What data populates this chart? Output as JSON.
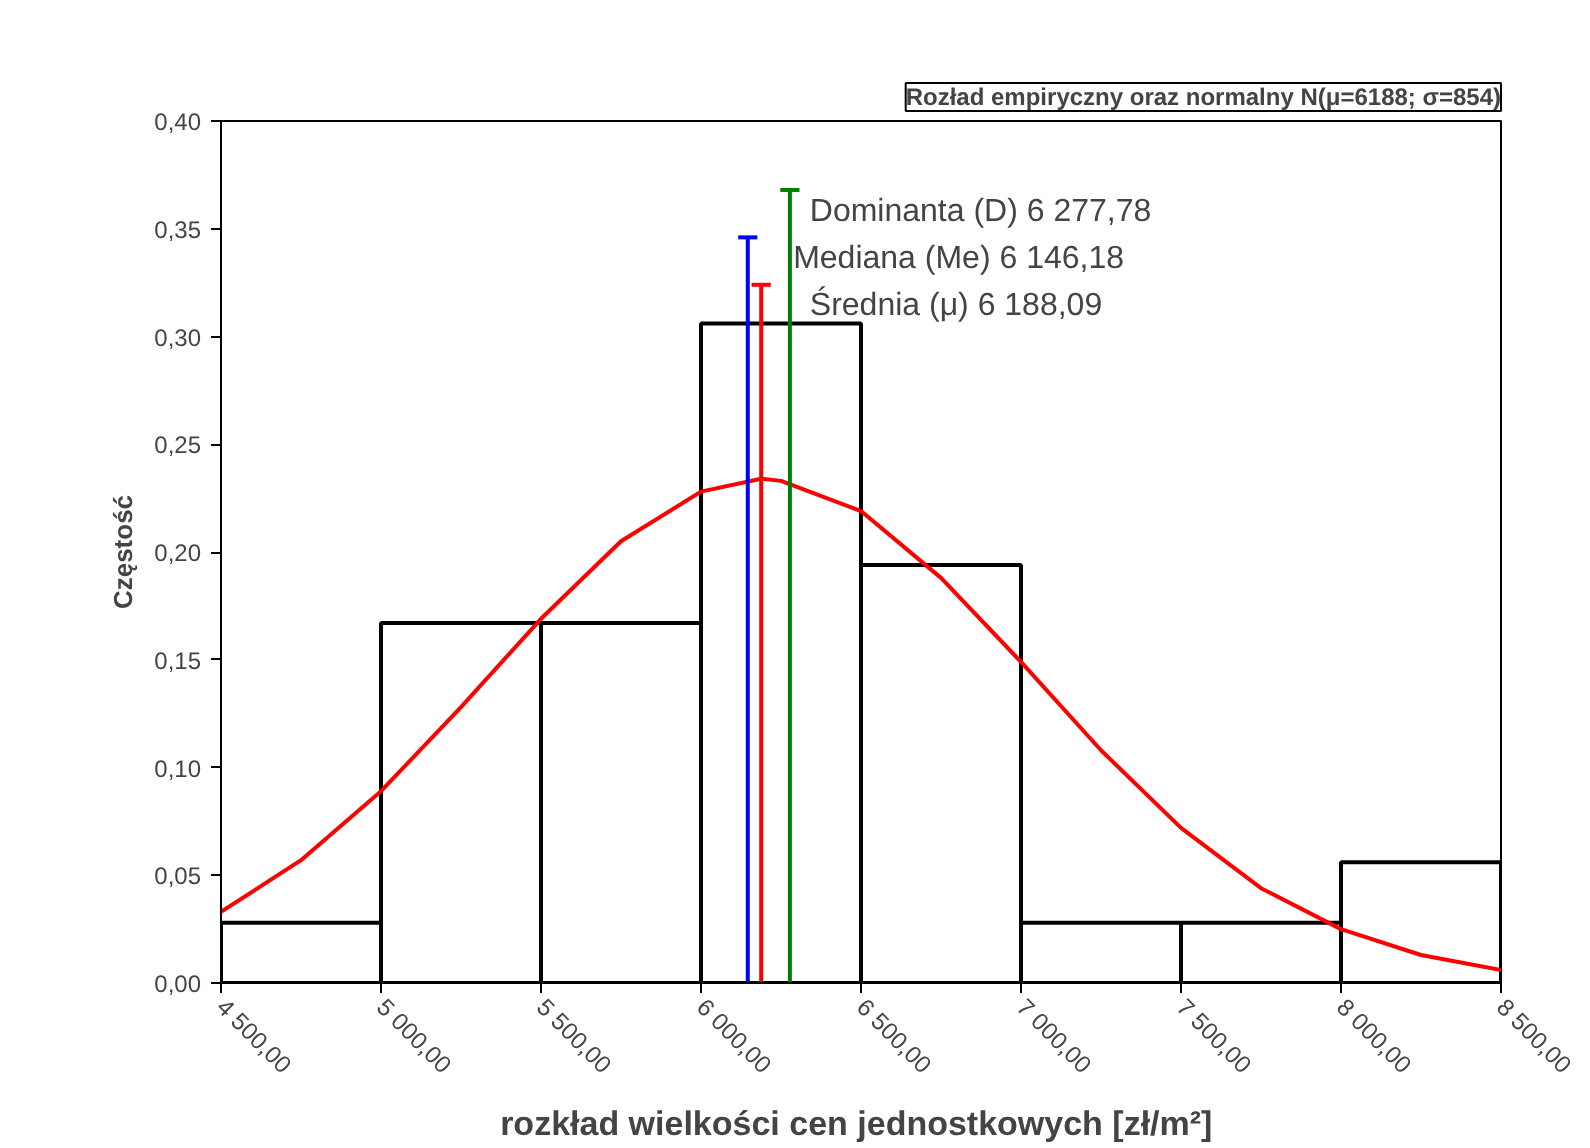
{
  "chart_data": {
    "type": "histogram",
    "title": "Rozład empiryczny oraz normalny N(μ=6188; σ=854)",
    "xlabel": "rozkład wielkości cen jednostkowych  [zł/m²]",
    "ylabel": "Częstość",
    "bins": [
      4500,
      5000,
      5500,
      6000,
      6500,
      7000,
      7500,
      8000,
      8500
    ],
    "values": [
      0.028,
      0.167,
      0.167,
      0.306,
      0.194,
      0.028,
      0.028,
      0.056
    ],
    "color": "#000000",
    "series": [
      {
        "type": "line",
        "color": "#ff0000",
        "x": [
          4500,
          4750,
          5000,
          5250,
          5500,
          5750,
          6000,
          6188,
          6250,
          6500,
          6750,
          7000,
          7250,
          7500,
          7750,
          8000,
          8250,
          8500
        ],
        "values": [
          0.033,
          0.057,
          0.089,
          0.128,
          0.169,
          0.205,
          0.228,
          0.234,
          0.233,
          0.219,
          0.188,
          0.149,
          0.108,
          0.072,
          0.044,
          0.025,
          0.013,
          0.006
        ]
      }
    ],
    "ref_lines": [
      {
        "axis": "x",
        "value": 6277.78,
        "label": "Dominanta (D) 6 277,78",
        "color": "#008000"
      },
      {
        "axis": "x",
        "value": 6146.18,
        "label": "Mediana (Me) 6 146,18",
        "color": "#0000ff"
      },
      {
        "axis": "x",
        "value": 6188.09,
        "label": "Średnia (μ) 6 188,09",
        "color": "#ff0000"
      }
    ],
    "xlim": [
      4500,
      8500
    ],
    "ylim": [
      0,
      0.4
    ],
    "xticks": [
      {
        "value": 4500,
        "label": "4 500,00"
      },
      {
        "value": 5000,
        "label": "5 000,00"
      },
      {
        "value": 5500,
        "label": "5 500,00"
      },
      {
        "value": 6000,
        "label": "6 000,00"
      },
      {
        "value": 6500,
        "label": "6 500,00"
      },
      {
        "value": 7000,
        "label": "7 000,00"
      },
      {
        "value": 7500,
        "label": "7 500,00"
      },
      {
        "value": 8000,
        "label": "8 000,00"
      },
      {
        "value": 8500,
        "label": "8 500,00"
      }
    ],
    "yticks": [
      {
        "value": 0,
        "label": "0,00"
      },
      {
        "value": 0.05,
        "label": "0,05"
      },
      {
        "value": 0.1,
        "label": "0,10"
      },
      {
        "value": 0.15,
        "label": "0,15"
      },
      {
        "value": 0.2,
        "label": "0,20"
      },
      {
        "value": 0.25,
        "label": "0,25"
      },
      {
        "value": 0.3,
        "label": "0,30"
      },
      {
        "value": 0.35,
        "label": "0,35"
      },
      {
        "value": 0.4,
        "label": "0,40"
      }
    ],
    "grid": false
  }
}
